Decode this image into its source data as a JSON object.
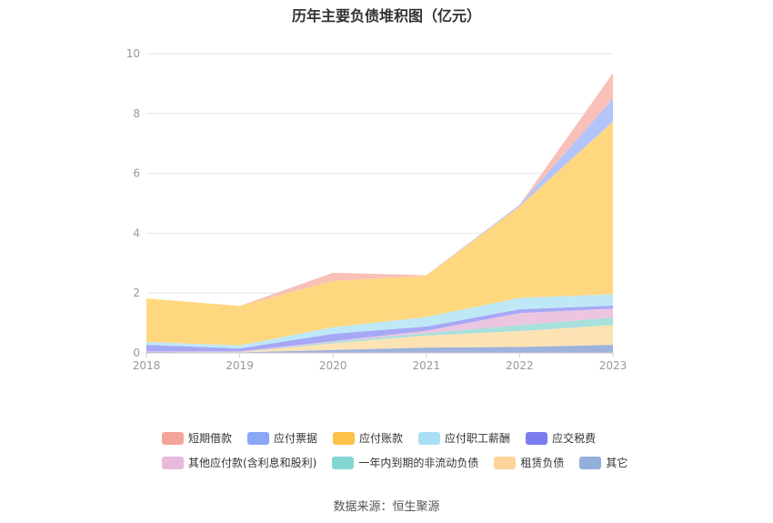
{
  "title": "历年主要负债堆积图（亿元）",
  "source": "数据来源：恒生聚源",
  "chart_data": {
    "type": "area",
    "stacked": true,
    "categories": [
      "2018",
      "2019",
      "2020",
      "2021",
      "2022",
      "2023"
    ],
    "ylim": [
      0,
      10
    ],
    "yticks": [
      "0",
      "2",
      "4",
      "6",
      "8",
      "10"
    ],
    "grid": true,
    "legend_position": "bottom",
    "series": [
      {
        "name": "其它",
        "color": "#9db2dc",
        "values": [
          0.03,
          0.02,
          0.1,
          0.18,
          0.2,
          0.27
        ]
      },
      {
        "name": "租赁负债",
        "color": "#fde3b4",
        "values": [
          0.0,
          0.0,
          0.22,
          0.4,
          0.53,
          0.66
        ]
      },
      {
        "name": "一年内到期的非流动负债",
        "color": "#a8e0dc",
        "values": [
          0.0,
          0.0,
          0.05,
          0.08,
          0.2,
          0.25
        ]
      },
      {
        "name": "其他应付款(含利息和股利)",
        "color": "#ecc6e1",
        "values": [
          0.02,
          0.03,
          0.02,
          0.08,
          0.4,
          0.3
        ]
      },
      {
        "name": "应交税费",
        "color": "#a6a8f5",
        "values": [
          0.22,
          0.1,
          0.25,
          0.14,
          0.13,
          0.1
        ]
      },
      {
        "name": "应付职工薪酬",
        "color": "#bfe8f7",
        "values": [
          0.1,
          0.1,
          0.22,
          0.32,
          0.38,
          0.38
        ]
      },
      {
        "name": "应付账款",
        "color": "#ffd77f",
        "values": [
          1.45,
          1.32,
          1.55,
          1.38,
          3.06,
          5.77
        ]
      },
      {
        "name": "应付票据",
        "color": "#b2c4fa",
        "values": [
          0.0,
          0.0,
          0.0,
          0.0,
          0.05,
          0.77
        ]
      },
      {
        "name": "短期借款",
        "color": "#f8c0b9",
        "values": [
          0.0,
          0.0,
          0.27,
          0.02,
          0.0,
          0.85
        ]
      }
    ],
    "legend": [
      [
        {
          "name": "短期借款",
          "color": "#f5a49a"
        },
        {
          "name": "应付票据",
          "color": "#8aa6f5"
        },
        {
          "name": "应付账款",
          "color": "#fcc146"
        },
        {
          "name": "应付职工薪酬",
          "color": "#a8dff5"
        },
        {
          "name": "应交税费",
          "color": "#7b7cf0"
        }
      ],
      [
        {
          "name": "其他应付款(含利息和股利)",
          "color": "#e6b9dd"
        },
        {
          "name": "一年内到期的非流动负债",
          "color": "#84d6d2"
        },
        {
          "name": "租赁负债",
          "color": "#fdd39a"
        },
        {
          "name": "其它",
          "color": "#93aedb"
        }
      ]
    ]
  }
}
